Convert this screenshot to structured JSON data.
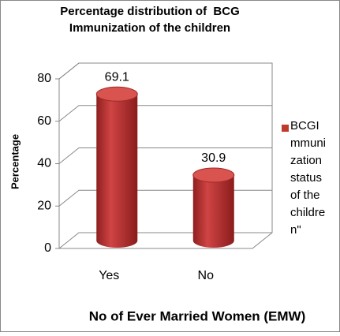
{
  "chart_data": {
    "type": "cylinder-bar",
    "title": "Percentage distribution of  BCG Immunization of the children",
    "x_label": "No of Ever Married Women (EMW)",
    "y_label": "Percentage",
    "categories": [
      "Yes",
      "No"
    ],
    "series": [
      {
        "name": "BCGImmunization status of the children\"",
        "color": "#c0392b",
        "values": [
          69.1,
          30.9
        ]
      }
    ],
    "ylim": [
      0,
      80
    ],
    "yticks": [
      0,
      20,
      40,
      60,
      80
    ],
    "grid": true,
    "legend": "right"
  }
}
